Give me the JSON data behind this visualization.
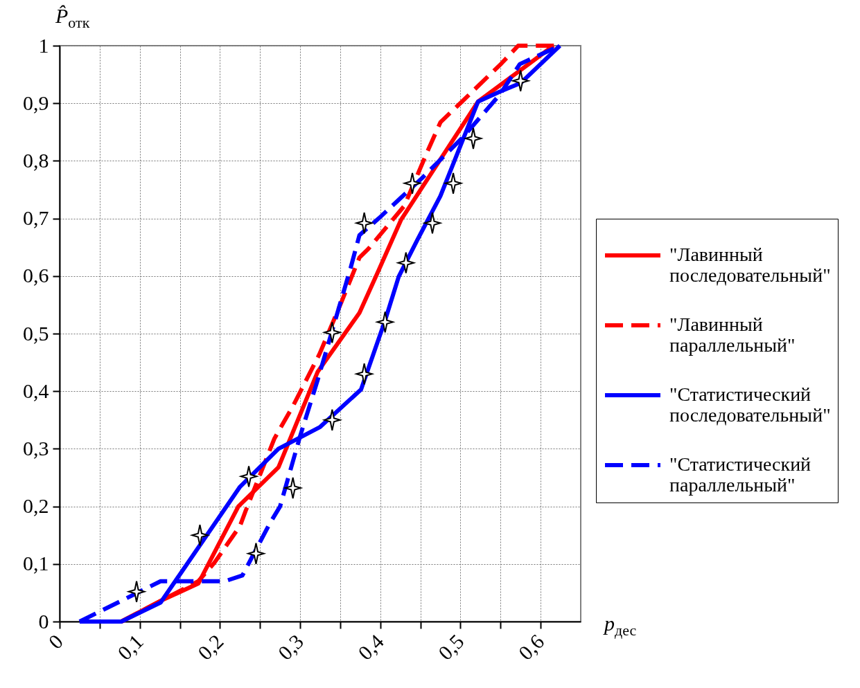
{
  "chart_data": {
    "type": "line",
    "xlabel": "p$_{дес}$",
    "ylabel": "P̂$_{отк}$",
    "xlim": [
      0,
      0.65
    ],
    "ylim": [
      0,
      1
    ],
    "xticks": [
      0,
      {
        "value": 0.05,
        "label": null
      },
      {
        "value": 0.1,
        "label": "0,1"
      },
      {
        "value": 0.15,
        "label": null
      },
      {
        "value": 0.2,
        "label": "0,2"
      },
      {
        "value": 0.25,
        "label": null
      },
      {
        "value": 0.3,
        "label": "0,3"
      },
      {
        "value": 0.35,
        "label": null
      },
      {
        "value": 0.4,
        "label": "0,4"
      },
      {
        "value": 0.45,
        "label": null
      },
      {
        "value": 0.5,
        "label": "0,5"
      },
      {
        "value": 0.55,
        "label": null
      },
      {
        "value": 0.6,
        "label": "0,6"
      }
    ],
    "yticks": [
      0,
      {
        "value": 0.1,
        "label": "0,1"
      },
      {
        "value": 0.2,
        "label": "0,2"
      },
      {
        "value": 0.3,
        "label": "0,3"
      },
      {
        "value": 0.4,
        "label": "0,4"
      },
      {
        "value": 0.5,
        "label": "0,5"
      },
      {
        "value": 0.6,
        "label": "0,6"
      },
      {
        "value": 0.7,
        "label": "0,7"
      },
      {
        "value": 0.8,
        "label": "0,8"
      },
      {
        "value": 0.9,
        "label": "0,9"
      },
      1
    ],
    "grid": true,
    "legend": "right",
    "series": [
      {
        "name": "\"Лавинный последовательный\"",
        "color": "#ff0000",
        "line_style": "solid",
        "x": [
          0.077,
          0.126,
          0.173,
          0.223,
          0.273,
          0.322,
          0.374,
          0.397,
          0.426,
          0.522,
          0.616
        ],
        "values": [
          0,
          0.036,
          0.066,
          0.2,
          0.268,
          0.434,
          0.536,
          0.607,
          0.698,
          0.903,
          1
        ]
      },
      {
        "name": "\"Лавинный параллельный\"",
        "color": "#ff0000",
        "line_style": "dashed",
        "x": [
          0.077,
          0.173,
          0.193,
          0.225,
          0.232,
          0.268,
          0.291,
          0.324,
          0.351,
          0.374,
          0.385,
          0.43,
          0.459,
          0.475,
          0.499,
          0.551,
          0.572,
          0.622
        ],
        "values": [
          0,
          0.07,
          0.102,
          0.166,
          0.192,
          0.318,
          0.374,
          0.464,
          0.553,
          0.632,
          0.647,
          0.722,
          0.817,
          0.867,
          0.899,
          0.969,
          1,
          1
        ]
      },
      {
        "name": "\"Статистический последовательный\"",
        "color": "#0000ff",
        "line_style": "solid",
        "x": [
          0.025,
          0.077,
          0.126,
          0.225,
          0.273,
          0.325,
          0.376,
          0.406,
          0.423,
          0.446,
          0.475,
          0.522,
          0.549,
          0.575,
          0.624
        ],
        "values": [
          0,
          0,
          0.033,
          0.234,
          0.3,
          0.338,
          0.403,
          0.523,
          0.599,
          0.662,
          0.739,
          0.903,
          0.92,
          0.935,
          1
        ]
      },
      {
        "name": "\"Статистический параллельный\"",
        "color": "#0000ff",
        "line_style": "dashed",
        "x": [
          0.025,
          0.126,
          0.206,
          0.228,
          0.262,
          0.275,
          0.3,
          0.322,
          0.363,
          0.374,
          0.398,
          0.452,
          0.503,
          0.549,
          0.574,
          0.624
        ],
        "values": [
          0,
          0.07,
          0.07,
          0.08,
          0.17,
          0.2,
          0.322,
          0.42,
          0.614,
          0.671,
          0.7,
          0.77,
          0.841,
          0.915,
          0.968,
          1
        ]
      },
      {
        "type": "scatter",
        "marker": "star",
        "color": "#ffffff",
        "x": [
          0.175,
          0.236,
          0.34,
          0.38,
          0.406,
          0.432,
          0.465,
          0.491,
          0.516,
          0.575,
          0.096,
          0.245,
          0.291,
          0.34,
          0.38,
          0.44
        ],
        "values": [
          0.15,
          0.252,
          0.35,
          0.43,
          0.52,
          0.623,
          0.692,
          0.761,
          0.839,
          0.939,
          0.052,
          0.118,
          0.232,
          0.502,
          0.692,
          0.761
        ]
      }
    ]
  }
}
